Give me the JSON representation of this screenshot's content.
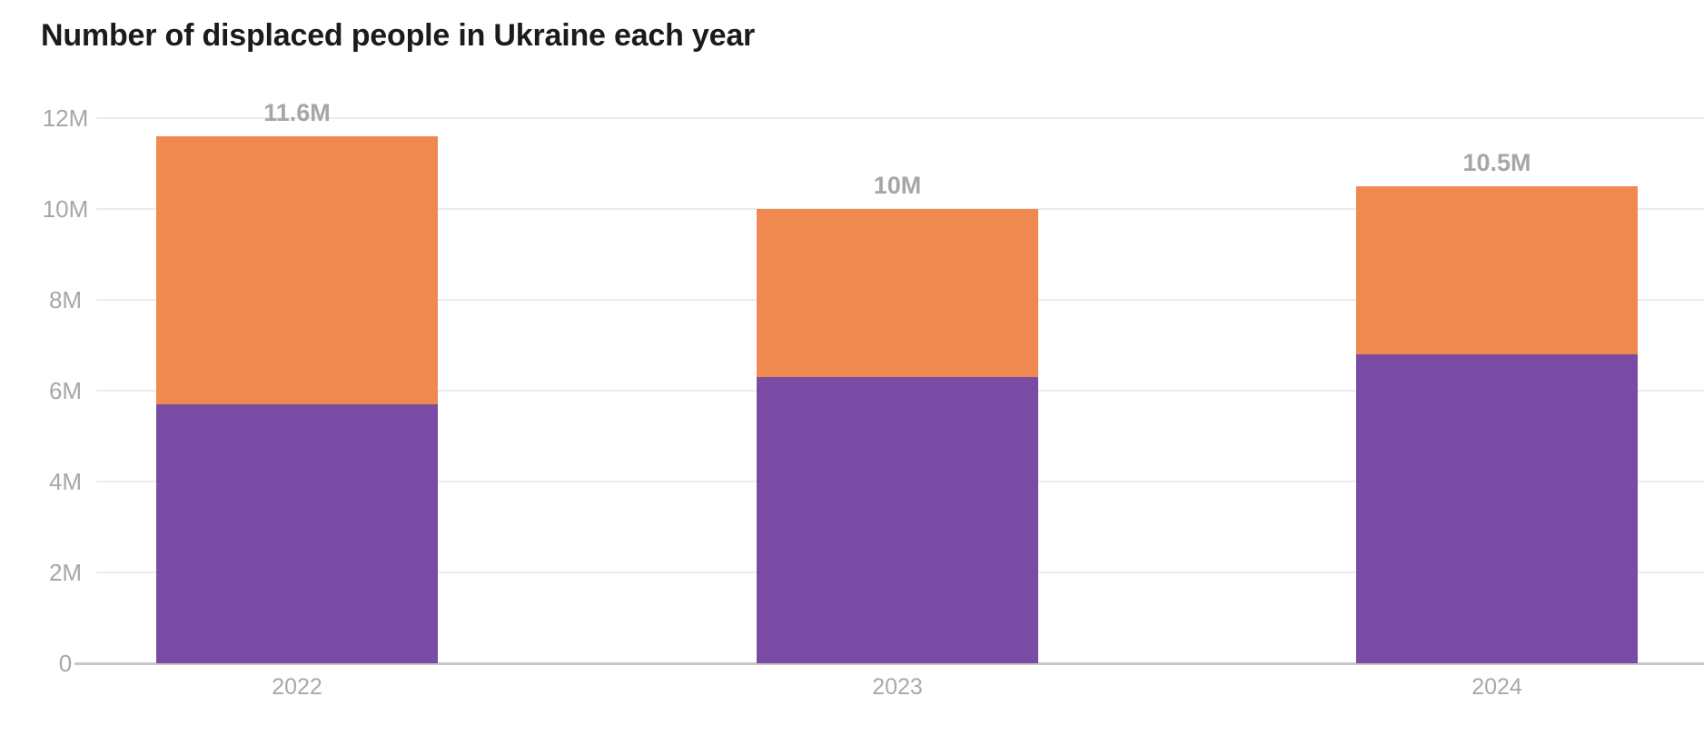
{
  "page": {
    "title": "Number of displaced people in Ukraine each year"
  },
  "chart_data": {
    "type": "bar",
    "stacked": true,
    "title": "Number of displaced people in Ukraine each year",
    "categories": [
      "2022",
      "2023",
      "2024"
    ],
    "series": [
      {
        "name": "purple-bottom-segment",
        "color": "#7A4BA4",
        "values": [
          5.7,
          6.3,
          6.8
        ]
      },
      {
        "name": "orange-top-segment",
        "color": "#EF894F",
        "values": [
          5.9,
          3.7,
          3.7
        ]
      }
    ],
    "totals": [
      11.6,
      10,
      10.5
    ],
    "total_labels": [
      "11.6M",
      "10M",
      "10.5M"
    ],
    "yticks": [
      {
        "value": 0,
        "label": "0"
      },
      {
        "value": 2,
        "label": "2M"
      },
      {
        "value": 4,
        "label": "4M"
      },
      {
        "value": 6,
        "label": "6M"
      },
      {
        "value": 8,
        "label": "8M"
      },
      {
        "value": 10,
        "label": "10M"
      },
      {
        "value": 12,
        "label": "12M"
      }
    ],
    "ylim": [
      0,
      12
    ],
    "grid": "horizontal",
    "legend": "none",
    "xlabel": "",
    "ylabel": "",
    "colors": {
      "bar_bottom": "#7A4BA4",
      "bar_top": "#EF894F",
      "gridline": "#ECECEC",
      "axis_line": "#C7C7C7",
      "tick_label": "#A7A7A7",
      "value_label": "#A6A6A6",
      "title": "#1B1B1B",
      "background": "#FFFFFF"
    }
  }
}
